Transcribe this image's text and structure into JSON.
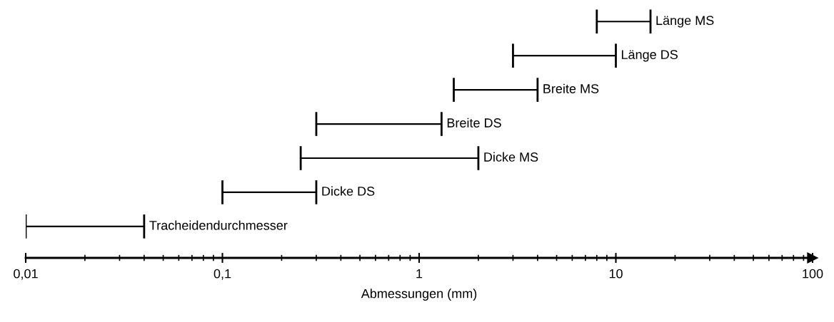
{
  "chart_data": {
    "type": "bar",
    "orientation": "horizontal",
    "xlabel": "Abmessungen (mm)",
    "log": "x",
    "categories": [
      "Länge MS",
      "Länge DS",
      "Breite MS",
      "Breite DS",
      "Dicke MS",
      "Dicke DS",
      "Tracheidendurchmesser"
    ],
    "base": [
      8,
      3,
      1.5,
      0.3,
      0.25,
      0.1,
      0.01
    ],
    "values": [
      7,
      7,
      2.5,
      1.0,
      1.75,
      0.2,
      0.03
    ],
    "color": "#000000",
    "xlim": [
      0.01,
      100
    ],
    "xticks": [
      {
        "value": 0.01,
        "label": "0,01"
      },
      {
        "value": 0.1,
        "label": "0,1"
      },
      1,
      10,
      100
    ],
    "tick_labels": "x",
    "grid": false,
    "legend": false
  }
}
